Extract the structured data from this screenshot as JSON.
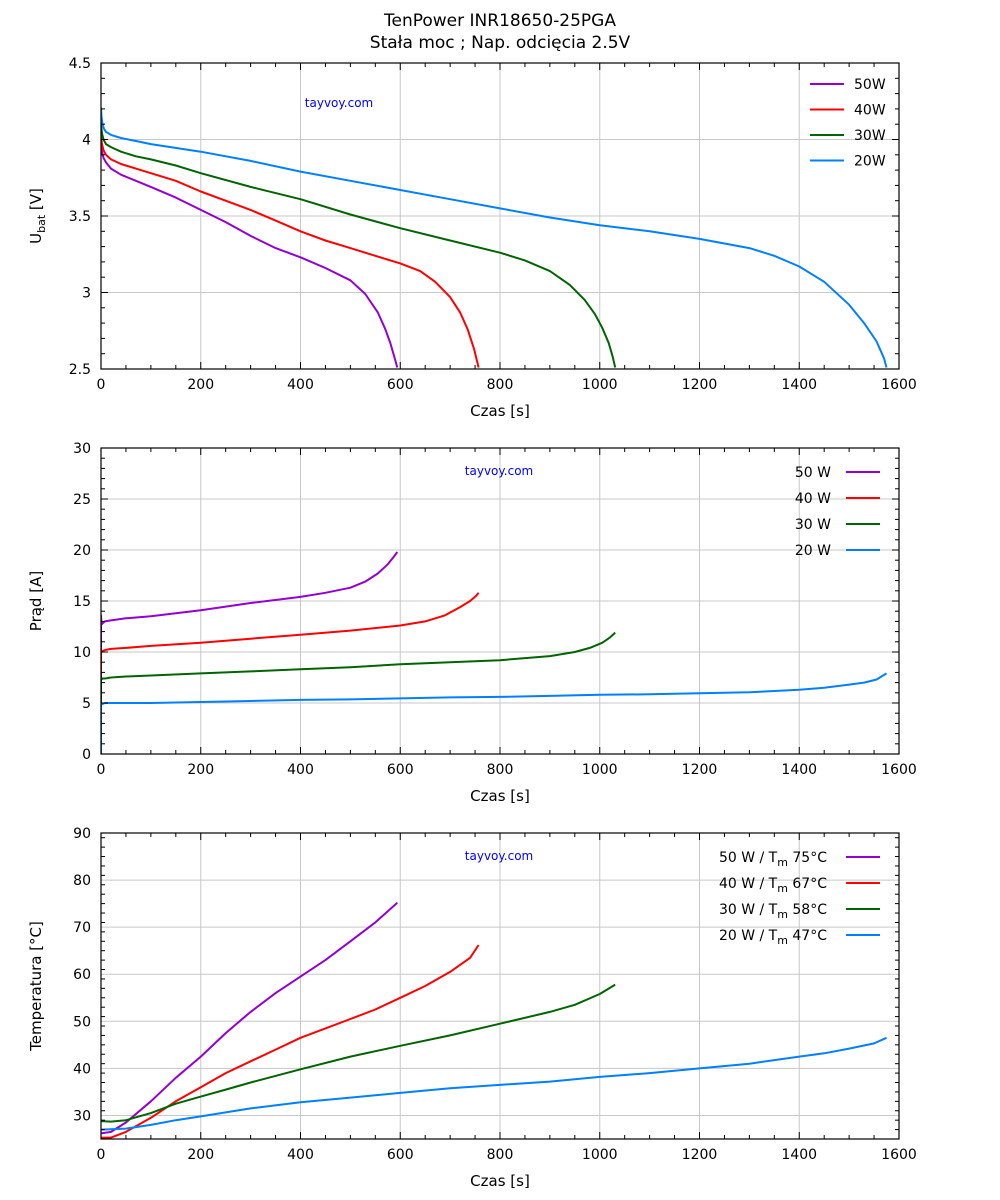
{
  "figure": {
    "title_line1": "TenPower INR18650-25PGA",
    "title_line2": "Stała moc  ;  Nap. odcięcia 2.5V",
    "watermark": "tayvoy.com",
    "colors": {
      "50W": "#9400d3",
      "40W": "#ff0000",
      "30W": "#006400",
      "20W": "#0080ff",
      "watermark": "#0000ff",
      "grid": "#c8c8c8"
    }
  },
  "chart_data": [
    {
      "type": "line",
      "title": "",
      "xlabel": "Czas [s]",
      "ylabel_main": "U",
      "ylabel_sub": "bat",
      "ylabel_suffix": " [V]",
      "xlim": [
        0,
        1600
      ],
      "ylim": [
        2.5,
        4.5
      ],
      "xticks": [
        0,
        200,
        400,
        600,
        800,
        1000,
        1200,
        1400,
        1600
      ],
      "xtick_labels": [
        "0",
        "200",
        "400",
        "600",
        "800",
        "1000",
        "1200",
        "1400",
        "1600"
      ],
      "yticks": [
        2.5,
        3,
        3.5,
        4,
        4.5
      ],
      "ytick_labels": [
        "2.5",
        "3",
        "3.5",
        "4",
        "4.5"
      ],
      "grid": true,
      "legend_position": "top-right",
      "legend_style": "line-then-label",
      "series": [
        {
          "name": "50W",
          "color": "#9400d3",
          "x": [
            0,
            2,
            5,
            10,
            20,
            40,
            70,
            100,
            150,
            200,
            250,
            300,
            350,
            400,
            450,
            500,
            530,
            555,
            570,
            580,
            588,
            594
          ],
          "y": [
            3.98,
            3.92,
            3.88,
            3.85,
            3.81,
            3.77,
            3.73,
            3.69,
            3.62,
            3.54,
            3.46,
            3.37,
            3.29,
            3.23,
            3.16,
            3.08,
            2.99,
            2.87,
            2.76,
            2.67,
            2.58,
            2.51
          ]
        },
        {
          "name": "40W",
          "color": "#ff0000",
          "x": [
            0,
            2,
            5,
            10,
            20,
            40,
            70,
            100,
            150,
            200,
            250,
            300,
            350,
            400,
            450,
            500,
            550,
            600,
            640,
            670,
            700,
            720,
            735,
            748,
            757
          ],
          "y": [
            4.02,
            3.97,
            3.93,
            3.9,
            3.87,
            3.84,
            3.81,
            3.78,
            3.73,
            3.66,
            3.6,
            3.54,
            3.47,
            3.4,
            3.34,
            3.29,
            3.24,
            3.19,
            3.14,
            3.07,
            2.97,
            2.87,
            2.76,
            2.63,
            2.51
          ]
        },
        {
          "name": "30W",
          "color": "#006400",
          "x": [
            0,
            2,
            5,
            10,
            20,
            40,
            70,
            100,
            150,
            200,
            300,
            400,
            500,
            600,
            700,
            800,
            850,
            900,
            940,
            970,
            990,
            1005,
            1018,
            1026,
            1031
          ],
          "y": [
            4.1,
            4.04,
            4.0,
            3.97,
            3.95,
            3.92,
            3.89,
            3.87,
            3.83,
            3.78,
            3.69,
            3.61,
            3.51,
            3.42,
            3.34,
            3.26,
            3.21,
            3.14,
            3.05,
            2.95,
            2.86,
            2.77,
            2.67,
            2.58,
            2.51
          ]
        },
        {
          "name": "20W",
          "color": "#0080ff",
          "x": [
            0,
            1,
            3,
            6,
            10,
            20,
            40,
            70,
            100,
            200,
            300,
            400,
            500,
            600,
            700,
            800,
            900,
            1000,
            1100,
            1200,
            1300,
            1350,
            1400,
            1450,
            1500,
            1530,
            1555,
            1570,
            1575
          ],
          "y": [
            4.21,
            4.15,
            4.1,
            4.07,
            4.05,
            4.03,
            4.01,
            3.99,
            3.97,
            3.92,
            3.86,
            3.79,
            3.73,
            3.67,
            3.61,
            3.55,
            3.49,
            3.44,
            3.4,
            3.35,
            3.29,
            3.24,
            3.17,
            3.07,
            2.92,
            2.8,
            2.68,
            2.57,
            2.51
          ]
        }
      ]
    },
    {
      "type": "line",
      "title": "",
      "xlabel": "Czas [s]",
      "ylabel": "Prąd [A]",
      "xlim": [
        0,
        1600
      ],
      "ylim": [
        0,
        30
      ],
      "xticks": [
        0,
        200,
        400,
        600,
        800,
        1000,
        1200,
        1400,
        1600
      ],
      "xtick_labels": [
        "0",
        "200",
        "400",
        "600",
        "800",
        "1000",
        "1200",
        "1400",
        "1600"
      ],
      "yticks": [
        0,
        5,
        10,
        15,
        20,
        25,
        30
      ],
      "ytick_labels": [
        "0",
        "5",
        "10",
        "15",
        "20",
        "25",
        "30"
      ],
      "grid": true,
      "legend_position": "top-right",
      "legend_style": "label-then-line",
      "series": [
        {
          "name": "50 W",
          "color": "#9400d3",
          "x": [
            0,
            0,
            1,
            3,
            8,
            20,
            50,
            100,
            200,
            300,
            400,
            450,
            500,
            530,
            555,
            575,
            588,
            594
          ],
          "y": [
            0,
            13.6,
            12.7,
            12.8,
            13.0,
            13.1,
            13.3,
            13.5,
            14.1,
            14.8,
            15.4,
            15.8,
            16.3,
            16.9,
            17.7,
            18.6,
            19.4,
            19.8
          ]
        },
        {
          "name": "40 W",
          "color": "#ff0000",
          "x": [
            0,
            0,
            1,
            3,
            8,
            20,
            50,
            100,
            200,
            300,
            400,
            500,
            600,
            650,
            690,
            720,
            740,
            752,
            757
          ],
          "y": [
            0,
            10.0,
            10.0,
            10.1,
            10.2,
            10.3,
            10.4,
            10.6,
            10.9,
            11.3,
            11.7,
            12.1,
            12.6,
            13.0,
            13.6,
            14.4,
            15.0,
            15.5,
            15.8
          ]
        },
        {
          "name": "30 W",
          "color": "#006400",
          "x": [
            0,
            0,
            1,
            3,
            8,
            20,
            50,
            100,
            200,
            300,
            400,
            500,
            600,
            700,
            800,
            900,
            950,
            980,
            1005,
            1020,
            1031
          ],
          "y": [
            0,
            7.6,
            7.3,
            7.4,
            7.4,
            7.5,
            7.6,
            7.7,
            7.9,
            8.1,
            8.3,
            8.5,
            8.8,
            9.0,
            9.2,
            9.6,
            10.0,
            10.4,
            10.9,
            11.4,
            11.9
          ]
        },
        {
          "name": "20 W",
          "color": "#0080ff",
          "x": [
            0,
            0,
            1,
            3,
            8,
            20,
            50,
            100,
            200,
            300,
            400,
            500,
            600,
            700,
            800,
            900,
            1000,
            1100,
            1200,
            1300,
            1400,
            1450,
            1500,
            1530,
            1555,
            1575
          ],
          "y": [
            0,
            4.9,
            4.9,
            4.9,
            5.0,
            5.0,
            5.0,
            5.0,
            5.1,
            5.2,
            5.3,
            5.35,
            5.45,
            5.55,
            5.6,
            5.7,
            5.8,
            5.85,
            5.95,
            6.05,
            6.3,
            6.5,
            6.8,
            7.0,
            7.3,
            7.9
          ]
        }
      ]
    },
    {
      "type": "line",
      "title": "",
      "xlabel": "Czas [s]",
      "ylabel": "Temperatura [°C]",
      "xlim": [
        0,
        1600
      ],
      "ylim": [
        25,
        90
      ],
      "xticks": [
        0,
        200,
        400,
        600,
        800,
        1000,
        1200,
        1400,
        1600
      ],
      "xtick_labels": [
        "0",
        "200",
        "400",
        "600",
        "800",
        "1000",
        "1200",
        "1400",
        "1600"
      ],
      "yticks": [
        30,
        40,
        50,
        60,
        70,
        80,
        90
      ],
      "ytick_labels": [
        "30",
        "40",
        "50",
        "60",
        "70",
        "80",
        "90"
      ],
      "grid": true,
      "legend_position": "top-right",
      "legend_style": "label-then-line",
      "series": [
        {
          "name": "50 W",
          "tm_label": "75°C",
          "color": "#9400d3",
          "x": [
            0,
            20,
            50,
            100,
            150,
            200,
            250,
            300,
            350,
            400,
            450,
            500,
            550,
            594
          ],
          "y": [
            26.2,
            26.5,
            28.5,
            33.0,
            38.0,
            42.5,
            47.5,
            52.0,
            56.0,
            59.5,
            63.0,
            67.0,
            71.0,
            75.2
          ]
        },
        {
          "name": "40 W",
          "tm_label": "67°C",
          "color": "#ff0000",
          "x": [
            0,
            20,
            50,
            100,
            150,
            200,
            250,
            300,
            350,
            400,
            450,
            500,
            550,
            600,
            650,
            700,
            740,
            757
          ],
          "y": [
            25.3,
            25.3,
            26.5,
            29.5,
            33.0,
            36.0,
            39.0,
            41.5,
            44.0,
            46.5,
            48.5,
            50.5,
            52.5,
            55.0,
            57.5,
            60.5,
            63.5,
            66.2
          ]
        },
        {
          "name": "30 W",
          "tm_label": "58°C",
          "color": "#006400",
          "x": [
            0,
            20,
            50,
            100,
            150,
            200,
            250,
            300,
            400,
            500,
            600,
            700,
            800,
            900,
            950,
            1000,
            1031
          ],
          "y": [
            28.8,
            28.7,
            29.0,
            30.5,
            32.5,
            34.0,
            35.5,
            37.0,
            39.8,
            42.5,
            44.8,
            47.0,
            49.5,
            52.0,
            53.5,
            55.8,
            57.8
          ]
        },
        {
          "name": "20 W",
          "tm_label": "47°C",
          "color": "#0080ff",
          "x": [
            0,
            50,
            100,
            150,
            200,
            300,
            400,
            500,
            600,
            700,
            800,
            900,
            1000,
            1100,
            1200,
            1300,
            1400,
            1450,
            1500,
            1550,
            1575
          ],
          "y": [
            27.0,
            27.2,
            28.0,
            29.0,
            29.8,
            31.5,
            32.8,
            33.8,
            34.8,
            35.8,
            36.5,
            37.2,
            38.2,
            39.0,
            40.0,
            41.0,
            42.5,
            43.2,
            44.2,
            45.3,
            46.5
          ]
        }
      ]
    }
  ]
}
